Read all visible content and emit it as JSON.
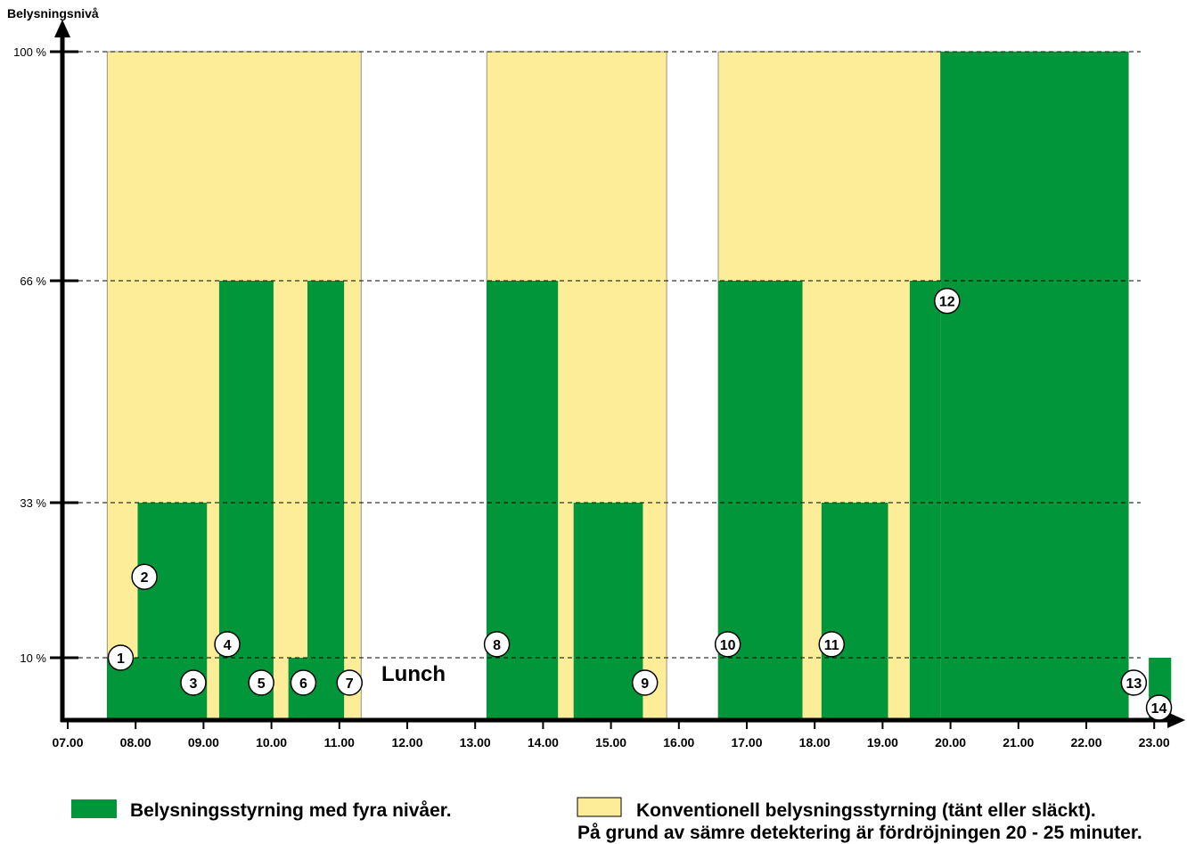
{
  "chart_data": {
    "type": "area",
    "ylabel": "Belysningsnivå",
    "xlabel": "",
    "y_ticks": [
      {
        "value": 10,
        "label": "10 %"
      },
      {
        "value": 33,
        "label": "33 %"
      },
      {
        "value": 66,
        "label": "66 %"
      },
      {
        "value": 100,
        "label": "100 %"
      }
    ],
    "x_ticks": [
      "07.00",
      "08.00",
      "09.00",
      "10.00",
      "11.00",
      "12.00",
      "13.00",
      "14.00",
      "15.00",
      "16.00",
      "17.00",
      "18.00",
      "19.00",
      "20.00",
      "21.00",
      "22.00",
      "23.00"
    ],
    "grid": "dashed horizontal lines at 10, 33, 66 and 100 %",
    "annotation": "Lunch",
    "series": [
      {
        "name": "Konventionell belysningsstyrning (tänt eller släckt).",
        "color": "#fdec98",
        "blocks": [
          {
            "start": 7.58,
            "end": 11.32,
            "level": 100
          },
          {
            "start": 13.17,
            "end": 15.82,
            "level": 100
          },
          {
            "start": 16.58,
            "end": 22.62,
            "level": 100
          }
        ]
      },
      {
        "name": "Belysningsstyrning med fyra nivåer.",
        "color": "#009639",
        "blocks": [
          {
            "start": 7.58,
            "end": 8.03,
            "level": 10
          },
          {
            "start": 8.03,
            "end": 9.05,
            "level": 33
          },
          {
            "start": 9.23,
            "end": 10.03,
            "level": 66
          },
          {
            "start": 10.25,
            "end": 10.53,
            "level": 10
          },
          {
            "start": 10.53,
            "end": 11.07,
            "level": 66
          },
          {
            "start": 13.17,
            "end": 14.22,
            "level": 66
          },
          {
            "start": 14.45,
            "end": 15.47,
            "level": 33
          },
          {
            "start": 16.58,
            "end": 17.82,
            "level": 66
          },
          {
            "start": 18.1,
            "end": 19.08,
            "level": 33
          },
          {
            "start": 19.4,
            "end": 19.85,
            "level": 66
          },
          {
            "start": 19.85,
            "end": 22.62,
            "level": 100
          },
          {
            "start": 22.92,
            "end": 23.25,
            "level": 10
          }
        ]
      }
    ],
    "markers": [
      {
        "label": "1",
        "time": 7.78,
        "level": 10
      },
      {
        "label": "2",
        "time": 8.13,
        "level": 22
      },
      {
        "label": "3",
        "time": 8.85,
        "level": 6
      },
      {
        "label": "4",
        "time": 9.35,
        "level": 12
      },
      {
        "label": "5",
        "time": 9.85,
        "level": 6
      },
      {
        "label": "6",
        "time": 10.47,
        "level": 6
      },
      {
        "label": "7",
        "time": 11.15,
        "level": 6
      },
      {
        "label": "8",
        "time": 13.32,
        "level": 12
      },
      {
        "label": "9",
        "time": 15.5,
        "level": 6
      },
      {
        "label": "10",
        "time": 16.72,
        "level": 12
      },
      {
        "label": "11",
        "time": 18.25,
        "level": 12
      },
      {
        "label": "12",
        "time": 19.95,
        "level": 63
      },
      {
        "label": "13",
        "time": 22.7,
        "level": 6
      },
      {
        "label": "14",
        "time": 23.07,
        "level": 2
      }
    ]
  },
  "legend": {
    "four_level": {
      "label": "Belysningsstyrning med fyra nivåer.",
      "color": "#009639"
    },
    "conventional": {
      "label": "Konventionell belysningsstyrning (tänt eller släckt).",
      "note": "På grund av sämre detektering är fördröjningen 20 - 25 minuter.",
      "color": "#fdec98"
    }
  }
}
